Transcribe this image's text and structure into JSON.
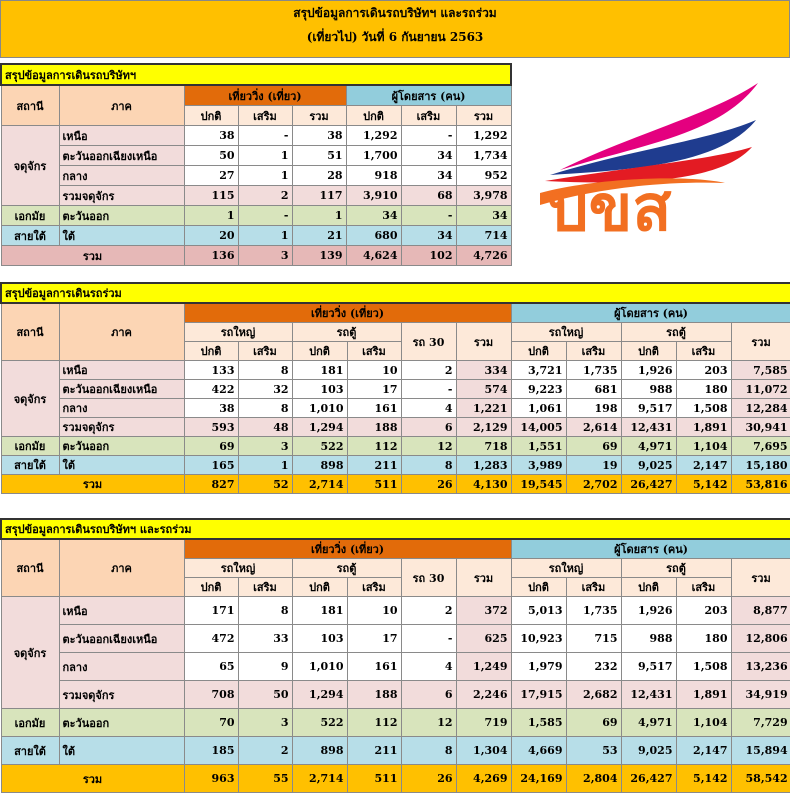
{
  "header": {
    "title": "สรุปข้อมูลการเดินรถบริษัทฯ และรถร่วม",
    "subtitle": "(เที่ยวไป) วันที่ 6 กันยายน 2563"
  },
  "logo": {
    "text": "บขส"
  },
  "company": {
    "title": "สรุปข้อมูลการเดินรถบริษัทฯ",
    "headers": {
      "station": "สถานี",
      "region": "ภาค",
      "trips": "เที่ยววิ่ง (เที่ยว)",
      "passengers": "ผู้โดยสาร (คน)",
      "normal": "ปกติ",
      "extra": "เสริม",
      "total": "รวม"
    },
    "groups": [
      {
        "station": "จดุจักร",
        "rows": [
          {
            "region": "เหนือ",
            "cells": [
              "38",
              "-",
              "38",
              "1,292",
              "-",
              "1,292"
            ]
          },
          {
            "region": "ตะวันออกเฉียงเหนือ",
            "cells": [
              "50",
              "1",
              "51",
              "1,700",
              "34",
              "1,734"
            ]
          },
          {
            "region": "กลาง",
            "cells": [
              "27",
              "1",
              "28",
              "918",
              "34",
              "952"
            ]
          },
          {
            "region": "รวมจดุจักร",
            "cells": [
              "115",
              "2",
              "117",
              "3,910",
              "68",
              "3,978"
            ]
          }
        ]
      },
      {
        "station": "เอกมัย",
        "rows": [
          {
            "region": "ตะวันออก",
            "cells": [
              "1",
              "-",
              "1",
              "34",
              "-",
              "34"
            ]
          }
        ]
      },
      {
        "station": "สายใต้",
        "rows": [
          {
            "region": "ใต้",
            "cells": [
              "20",
              "1",
              "21",
              "680",
              "34",
              "714"
            ]
          }
        ]
      }
    ],
    "total": {
      "label": "รวม",
      "cells": [
        "136",
        "3",
        "139",
        "4,624",
        "102",
        "4,726"
      ]
    }
  },
  "partners": {
    "title": "สรุปข้อมูลการเดินรถร่วม",
    "headers": {
      "station": "สถานี",
      "region": "ภาค",
      "trips": "เที่ยววิ่ง (เที่ยว)",
      "passengers": "ผู้โดยสาร (คน)",
      "big": "รถใหญ่",
      "van": "รถตู้",
      "bus30": "รถ 30",
      "normal": "ปกติ",
      "extra": "เสริม",
      "total": "รวม"
    },
    "groups": [
      {
        "station": "จดุจักร",
        "rows": [
          {
            "region": "เหนือ",
            "cells": [
              "133",
              "8",
              "181",
              "10",
              "2",
              "334",
              "3,721",
              "1,735",
              "1,926",
              "203",
              "7,585"
            ]
          },
          {
            "region": "ตะวันออกเฉียงเหนือ",
            "cells": [
              "422",
              "32",
              "103",
              "17",
              "-",
              "574",
              "9,223",
              "681",
              "988",
              "180",
              "11,072"
            ]
          },
          {
            "region": "กลาง",
            "cells": [
              "38",
              "8",
              "1,010",
              "161",
              "4",
              "1,221",
              "1,061",
              "198",
              "9,517",
              "1,508",
              "12,284"
            ]
          },
          {
            "region": "รวมจดุจักร",
            "cells": [
              "593",
              "48",
              "1,294",
              "188",
              "6",
              "2,129",
              "14,005",
              "2,614",
              "12,431",
              "1,891",
              "30,941"
            ]
          }
        ]
      },
      {
        "station": "เอกมัย",
        "rows": [
          {
            "region": "ตะวันออก",
            "cells": [
              "69",
              "3",
              "522",
              "112",
              "12",
              "718",
              "1,551",
              "69",
              "4,971",
              "1,104",
              "7,695"
            ]
          }
        ]
      },
      {
        "station": "สายใต้",
        "rows": [
          {
            "region": "ใต้",
            "cells": [
              "165",
              "1",
              "898",
              "211",
              "8",
              "1,283",
              "3,989",
              "19",
              "9,025",
              "2,147",
              "15,180"
            ]
          }
        ]
      }
    ],
    "total": {
      "label": "รวม",
      "cells": [
        "827",
        "52",
        "2,714",
        "511",
        "26",
        "4,130",
        "19,545",
        "2,702",
        "26,427",
        "5,142",
        "53,816"
      ]
    }
  },
  "combined": {
    "title": "สรุปข้อมูลการเดินรถบริษัทฯ และรถร่วม",
    "headers": {
      "station": "สถานี",
      "region": "ภาค",
      "trips": "เที่ยววิ่ง (เที่ยว)",
      "passengers": "ผู้โดยสาร (คน)",
      "big": "รถใหญ่",
      "van": "รถตู้",
      "bus30": "รถ 30",
      "normal": "ปกติ",
      "extra": "เสริม",
      "total": "รวม"
    },
    "groups": [
      {
        "station": "จดุจักร",
        "rows": [
          {
            "region": "เหนือ",
            "cells": [
              "171",
              "8",
              "181",
              "10",
              "2",
              "372",
              "5,013",
              "1,735",
              "1,926",
              "203",
              "8,877"
            ]
          },
          {
            "region": "ตะวันออกเฉียงเหนือ",
            "cells": [
              "472",
              "33",
              "103",
              "17",
              "-",
              "625",
              "10,923",
              "715",
              "988",
              "180",
              "12,806"
            ]
          },
          {
            "region": "กลาง",
            "cells": [
              "65",
              "9",
              "1,010",
              "161",
              "4",
              "1,249",
              "1,979",
              "232",
              "9,517",
              "1,508",
              "13,236"
            ]
          },
          {
            "region": "รวมจดุจักร",
            "cells": [
              "708",
              "50",
              "1,294",
              "188",
              "6",
              "2,246",
              "17,915",
              "2,682",
              "12,431",
              "1,891",
              "34,919"
            ]
          }
        ]
      },
      {
        "station": "เอกมัย",
        "rows": [
          {
            "region": "ตะวันออก",
            "cells": [
              "70",
              "3",
              "522",
              "112",
              "12",
              "719",
              "1,585",
              "69",
              "4,971",
              "1,104",
              "7,729"
            ]
          }
        ]
      },
      {
        "station": "สายใต้",
        "rows": [
          {
            "region": "ใต้",
            "cells": [
              "185",
              "2",
              "898",
              "211",
              "8",
              "1,304",
              "4,669",
              "53",
              "9,025",
              "2,147",
              "15,894"
            ]
          }
        ]
      }
    ],
    "total": {
      "label": "รวม",
      "cells": [
        "963",
        "55",
        "2,714",
        "511",
        "26",
        "4,269",
        "24,169",
        "2,804",
        "26,427",
        "5,142",
        "58,542"
      ]
    }
  }
}
